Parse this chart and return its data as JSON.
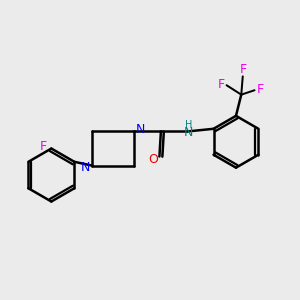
{
  "bg_color": "#ebebeb",
  "bond_color": "#000000",
  "N_color": "#0000ee",
  "O_color": "#ee0000",
  "F_color": "#ee00ee",
  "NH_color": "#008080",
  "line_width": 1.8,
  "figsize": [
    3.0,
    3.0
  ],
  "dpi": 100,
  "xlim": [
    0,
    10
  ],
  "ylim": [
    0,
    10
  ]
}
